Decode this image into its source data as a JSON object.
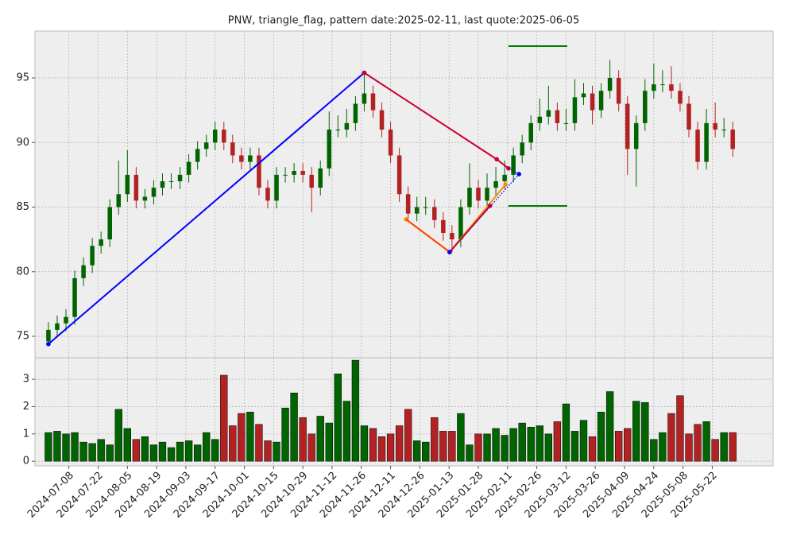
{
  "chart_data": {
    "type": "candlestick",
    "title": "PNW, triangle_flag, pattern date:2025-02-11, last quote:2025-06-05",
    "x": [
      0,
      3,
      6,
      9,
      12,
      15,
      18,
      21,
      24,
      27,
      30,
      33,
      36,
      39,
      42,
      45,
      48,
      51,
      54,
      57,
      60,
      63,
      66,
      69,
      72,
      75,
      78,
      81,
      84,
      87,
      90,
      93,
      96,
      99,
      102,
      105,
      108,
      111,
      114,
      117,
      120,
      123,
      126,
      129,
      132,
      135,
      138,
      141,
      144,
      147,
      150,
      153,
      156,
      159,
      162,
      165,
      168,
      171,
      174,
      177,
      180,
      183,
      186,
      189,
      192,
      195,
      198,
      201,
      204,
      207,
      210,
      213,
      216,
      219,
      222,
      225,
      228,
      231,
      234
    ],
    "ohlc": [
      [
        74.6,
        76.1,
        74.3,
        75.5
      ],
      [
        75.5,
        76.6,
        74.9,
        76
      ],
      [
        76,
        77.1,
        75.4,
        76.5
      ],
      [
        76.5,
        80.1,
        75.9,
        79.5
      ],
      [
        79.5,
        81.1,
        78.9,
        80.5
      ],
      [
        80.5,
        82.6,
        79.9,
        82
      ],
      [
        82,
        83.1,
        81.4,
        82.5
      ],
      [
        82.5,
        85.6,
        81.9,
        85
      ],
      [
        85,
        88.6,
        84.4,
        86
      ],
      [
        86,
        89.4,
        85.4,
        87.5
      ],
      [
        87.5,
        88.1,
        84.9,
        85.5
      ],
      [
        85.5,
        86.4,
        84.9,
        85.8
      ],
      [
        85.8,
        87.1,
        85.2,
        86.5
      ],
      [
        86.5,
        87.6,
        85.9,
        87
      ],
      [
        87,
        87.6,
        86.4,
        87
      ],
      [
        87,
        88.1,
        86.4,
        87.5
      ],
      [
        87.5,
        89.1,
        86.9,
        88.5
      ],
      [
        88.5,
        90.1,
        87.9,
        89.5
      ],
      [
        89.5,
        90.6,
        88.9,
        90
      ],
      [
        90,
        91.6,
        89.4,
        91
      ],
      [
        91,
        91.6,
        89.4,
        90
      ],
      [
        90,
        90.6,
        88.4,
        89
      ],
      [
        89,
        89.6,
        87.9,
        88.5
      ],
      [
        88.5,
        89.6,
        87.9,
        89
      ],
      [
        89,
        89.6,
        85.9,
        86.5
      ],
      [
        86.5,
        87.1,
        84.9,
        85.5
      ],
      [
        85.5,
        88.1,
        84.9,
        87.5
      ],
      [
        87.5,
        88.1,
        86.9,
        87.5
      ],
      [
        87.5,
        88.4,
        86.9,
        87.8
      ],
      [
        87.8,
        88.4,
        86.9,
        87.5
      ],
      [
        87.5,
        88.1,
        84.6,
        86.5
      ],
      [
        86.5,
        88.6,
        85.9,
        88
      ],
      [
        88,
        92.4,
        87.4,
        91
      ],
      [
        91,
        92.1,
        90.4,
        91
      ],
      [
        91,
        92.6,
        90.4,
        91.5
      ],
      [
        91.5,
        93.6,
        90.9,
        93
      ],
      [
        93,
        95.4,
        92.4,
        93.8
      ],
      [
        93.8,
        94.4,
        91.9,
        92.5
      ],
      [
        92.5,
        93.1,
        90.4,
        91
      ],
      [
        91,
        91.6,
        88.4,
        89
      ],
      [
        89,
        89.6,
        85.4,
        86
      ],
      [
        86,
        86.6,
        83.9,
        84.5
      ],
      [
        84.5,
        85.8,
        83.9,
        85
      ],
      [
        85,
        85.8,
        84.4,
        85
      ],
      [
        85,
        85.6,
        83.4,
        84
      ],
      [
        84,
        84.6,
        82.4,
        83
      ],
      [
        83,
        83.6,
        81.5,
        82.5
      ],
      [
        82.5,
        85.6,
        81.9,
        85
      ],
      [
        85,
        88.4,
        84.4,
        86.5
      ],
      [
        86.5,
        87.1,
        84.9,
        85.5
      ],
      [
        85.5,
        87.6,
        84.9,
        86.5
      ],
      [
        86.5,
        88.1,
        85.9,
        87
      ],
      [
        87,
        88.6,
        86.4,
        87.5
      ],
      [
        87.5,
        89.6,
        86.9,
        89
      ],
      [
        89,
        90.6,
        88.4,
        90
      ],
      [
        90,
        92.1,
        89.4,
        91.5
      ],
      [
        91.5,
        93.4,
        90.9,
        92
      ],
      [
        92,
        94.4,
        91.4,
        92.5
      ],
      [
        92.5,
        93.1,
        90.9,
        91.5
      ],
      [
        91.5,
        92.6,
        90.9,
        91.5
      ],
      [
        91.5,
        94.9,
        90.9,
        93.5
      ],
      [
        93.5,
        94.6,
        92.9,
        93.8
      ],
      [
        93.8,
        94.4,
        91.4,
        92.5
      ],
      [
        92.5,
        94.6,
        91.9,
        94
      ],
      [
        94,
        96.4,
        93.4,
        95
      ],
      [
        95,
        95.6,
        92.4,
        93
      ],
      [
        93,
        93.6,
        87.5,
        89.5
      ],
      [
        89.5,
        92.1,
        86.6,
        91.5
      ],
      [
        91.5,
        94.9,
        90.9,
        94
      ],
      [
        94,
        96.1,
        93.4,
        94.5
      ],
      [
        94.5,
        95.6,
        93.9,
        94.5
      ],
      [
        94.5,
        95.9,
        93.4,
        94
      ],
      [
        94,
        94.6,
        92.4,
        93
      ],
      [
        93,
        93.6,
        90.4,
        91
      ],
      [
        91,
        91.6,
        87.9,
        88.5
      ],
      [
        88.5,
        92.6,
        87.9,
        91.5
      ],
      [
        91.5,
        93.1,
        90.4,
        91
      ],
      [
        91,
        91.9,
        90.4,
        91
      ],
      [
        91,
        91.6,
        88.9,
        89.5
      ]
    ],
    "volume": [
      1.05,
      1.1,
      1.0,
      1.05,
      0.7,
      0.65,
      0.8,
      0.6,
      1.9,
      1.2,
      0.8,
      0.9,
      0.6,
      0.7,
      0.5,
      0.7,
      0.75,
      0.6,
      1.05,
      0.8,
      3.15,
      1.3,
      1.75,
      1.8,
      1.35,
      0.75,
      0.7,
      1.95,
      2.5,
      1.6,
      1.0,
      1.65,
      1.4,
      3.2,
      2.2,
      3.7,
      1.3,
      1.2,
      0.9,
      1.0,
      1.3,
      1.9,
      0.75,
      0.7,
      1.6,
      1.1,
      1.1,
      1.75,
      0.6,
      1.0,
      1.0,
      1.2,
      0.95,
      1.2,
      1.4,
      1.25,
      1.3,
      1.0,
      1.45,
      2.1,
      1.1,
      1.5,
      0.9,
      1.8,
      2.55,
      1.1,
      1.2,
      2.2,
      2.15,
      0.8,
      1.05,
      1.75,
      2.4,
      1.0,
      1.35,
      1.45,
      0.8,
      1.05,
      1.05
    ],
    "up_color": "#006400",
    "down_color": "#b22222",
    "xlim": [
      -4.6,
      247.8
    ],
    "xticks": [
      {
        "value": 7,
        "label": "2024-07-08"
      },
      {
        "value": 17,
        "label": "2024-07-22"
      },
      {
        "value": 27,
        "label": "2024-08-05"
      },
      {
        "value": 37,
        "label": "2024-08-19"
      },
      {
        "value": 47,
        "label": "2024-09-03"
      },
      {
        "value": 57,
        "label": "2024-09-17"
      },
      {
        "value": 67,
        "label": "2024-10-01"
      },
      {
        "value": 77,
        "label": "2024-10-15"
      },
      {
        "value": 87,
        "label": "2024-10-29"
      },
      {
        "value": 97,
        "label": "2024-11-12"
      },
      {
        "value": 107,
        "label": "2024-11-26"
      },
      {
        "value": 117,
        "label": "2024-12-11"
      },
      {
        "value": 127,
        "label": "2024-12-26"
      },
      {
        "value": 137,
        "label": "2025-01-13"
      },
      {
        "value": 147,
        "label": "2025-01-28"
      },
      {
        "value": 157,
        "label": "2025-02-11"
      },
      {
        "value": 167,
        "label": "2025-02-26"
      },
      {
        "value": 177,
        "label": "2025-03-12"
      },
      {
        "value": 187,
        "label": "2025-03-26"
      },
      {
        "value": 197,
        "label": "2025-04-09"
      },
      {
        "value": 207,
        "label": "2025-04-24"
      },
      {
        "value": 217,
        "label": "2025-05-08"
      },
      {
        "value": 227,
        "label": "2025-05-22"
      }
    ],
    "ylim": [
      73.34,
      98.63
    ],
    "yticks": [
      75,
      80,
      85,
      90,
      95
    ],
    "vlim": [
      -0.17,
      3.79
    ],
    "vticks": [
      0,
      1,
      2,
      3
    ],
    "grid": true,
    "lines": [
      {
        "color": "#0000ff",
        "style": "solid",
        "markers": true,
        "x": [
          0,
          108
        ],
        "y": [
          74.4,
          95.4
        ]
      },
      {
        "color": "#cc0033",
        "style": "solid",
        "markers": true,
        "x": [
          108,
          153.3,
          157.3
        ],
        "y": [
          95.4,
          88.7,
          88.0
        ]
      },
      {
        "color": "#ff8c00",
        "style": "solid",
        "markers": true,
        "x": [
          122.3,
          137.2,
          156.3
        ],
        "y": [
          84.05,
          81.52,
          86.75
        ]
      },
      {
        "color": "#ff4500",
        "style": "solid",
        "markers": false,
        "x": [
          122.3,
          137.2
        ],
        "y": [
          84.05,
          81.52
        ]
      },
      {
        "color": "#cc0033",
        "style": "solid",
        "markers": true,
        "x": [
          137.2,
          151
        ],
        "y": [
          81.52,
          85.1
        ]
      },
      {
        "color": "#0000ff",
        "style": "dotted",
        "markers": true,
        "x": [
          137.2,
          160.9
        ],
        "y": [
          81.52,
          87.55
        ]
      },
      {
        "color": "#0000ff",
        "style": "dotted",
        "markers": false,
        "x": [
          157.3,
          160.9
        ],
        "y": [
          88.0,
          87.55
        ]
      },
      {
        "color": "#cc0033",
        "style": "dotted",
        "markers": false,
        "x": [
          137.2,
          151
        ],
        "y": [
          81.52,
          85.1
        ]
      },
      {
        "color": "#008000",
        "style": "solid",
        "markers": false,
        "x": [
          157.3,
          177.4
        ],
        "y": [
          97.46,
          97.46
        ]
      },
      {
        "color": "#008000",
        "style": "solid",
        "markers": false,
        "x": [
          157.3,
          177.4
        ],
        "y": [
          85.09,
          85.09
        ]
      }
    ]
  }
}
